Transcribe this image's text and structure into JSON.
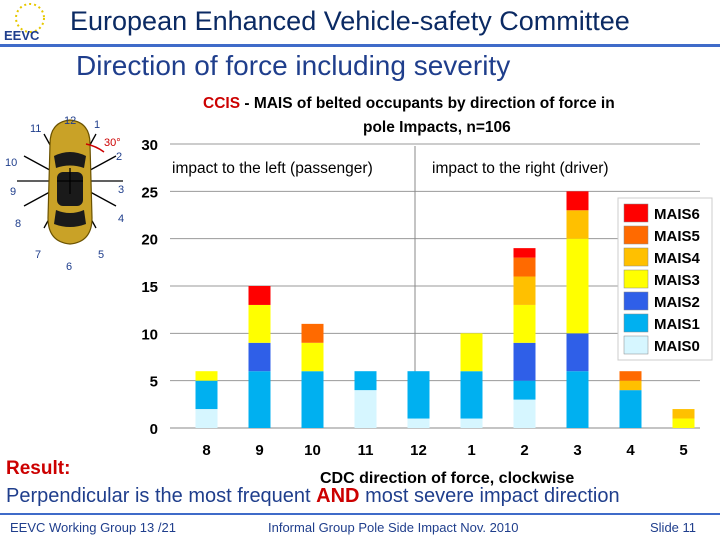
{
  "header": {
    "title": "European Enhanced Vehicle-safety Committee",
    "logo_text": "EEVC"
  },
  "subtitle": "Direction of force including severity",
  "car_diagram": {
    "clock_labels": [
      "12",
      "1",
      "2",
      "3",
      "4",
      "5",
      "6",
      "7",
      "8",
      "9",
      "10",
      "11"
    ],
    "angle_label": "30°"
  },
  "result": {
    "label": "Result:",
    "text_part1": "Perpendicular is the most frequent ",
    "text_bold": "AND",
    "text_part2": " most severe impact direction"
  },
  "footer": {
    "left": "EEVC Working Group 13 /21",
    "center": "Informal Group Pole Side Impact Nov. 2010",
    "right": "Slide 11"
  },
  "colors": {
    "MAIS6": "#ff0000",
    "MAIS5": "#ff6a00",
    "MAIS4": "#ffc000",
    "MAIS3": "#ffff00",
    "MAIS2": "#2f5fe8",
    "MAIS1": "#00b0f0",
    "MAIS0": "#d6f6ff",
    "accent": "#1f3e8c",
    "title_red": "#cc0000"
  },
  "chart_data": {
    "type": "bar",
    "stacked": true,
    "title_prefix": "CCIS",
    "title_line1": " - MAIS of belted occupants by direction of force in",
    "title_line2": "pole Impacts, n=106",
    "xlabel": "CDC direction of force, clockwise",
    "ylabel": "",
    "ylim": [
      0,
      30
    ],
    "yticks": [
      0,
      5,
      10,
      15,
      20,
      25,
      30
    ],
    "categories": [
      "8",
      "9",
      "10",
      "11",
      "12",
      "1",
      "2",
      "3",
      "4",
      "5"
    ],
    "annotations": [
      "impact to the left (passenger)",
      "impact to the right (driver)"
    ],
    "legend_position": "right",
    "series": [
      {
        "name": "MAIS0",
        "values": [
          2,
          0,
          0,
          4,
          1,
          1,
          3,
          0,
          0,
          0
        ]
      },
      {
        "name": "MAIS1",
        "values": [
          3,
          6,
          6,
          2,
          5,
          5,
          2,
          6,
          4,
          0
        ]
      },
      {
        "name": "MAIS2",
        "values": [
          0,
          3,
          0,
          0,
          0,
          0,
          4,
          4,
          0,
          0
        ]
      },
      {
        "name": "MAIS3",
        "values": [
          1,
          4,
          3,
          0,
          0,
          4,
          4,
          10,
          0,
          1
        ]
      },
      {
        "name": "MAIS4",
        "values": [
          0,
          0,
          0,
          0,
          0,
          0,
          3,
          3,
          1,
          1
        ]
      },
      {
        "name": "MAIS5",
        "values": [
          0,
          0,
          2,
          0,
          0,
          0,
          2,
          0,
          1,
          0
        ]
      },
      {
        "name": "MAIS6",
        "values": [
          0,
          2,
          0,
          0,
          0,
          0,
          1,
          2,
          0,
          0
        ]
      }
    ]
  }
}
